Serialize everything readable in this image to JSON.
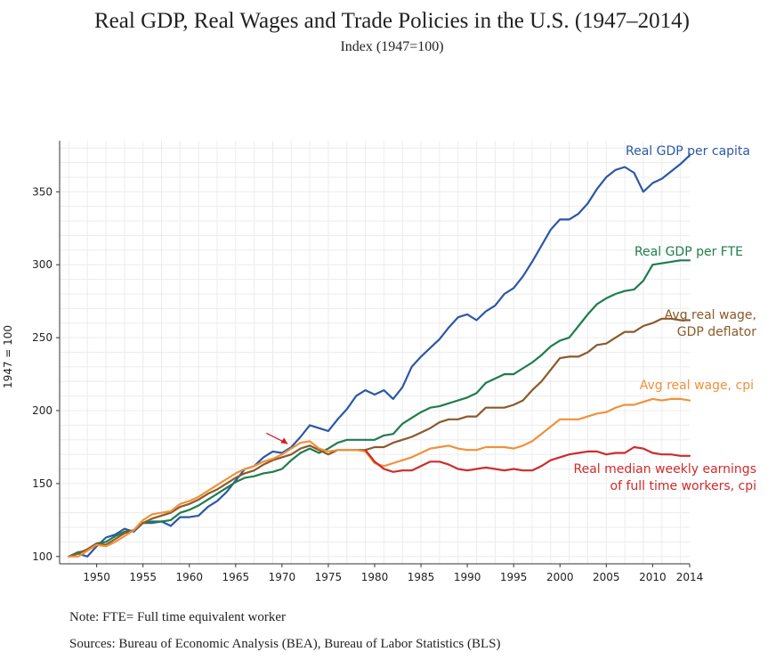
{
  "title": "Real GDP, Real Wages and Trade Policies in the U.S. (1947–2014)",
  "subtitle": "Index (1947=100)",
  "note": "Note: FTE= Full time equivalent worker",
  "sources": "Sources: Bureau of Economic Analysis (BEA), Bureau of Labor Statistics (BLS)",
  "chart_data": {
    "type": "line",
    "ylabel": "1947 = 100",
    "xlabel": "",
    "xlim": [
      1946,
      2014
    ],
    "ylim": [
      95,
      385
    ],
    "x_ticks": [
      1950,
      1955,
      1960,
      1965,
      1970,
      1975,
      1980,
      1985,
      1990,
      1995,
      2000,
      2005,
      2010,
      2014
    ],
    "y_ticks": [
      100,
      150,
      200,
      250,
      300,
      350
    ],
    "grid": true,
    "annotation": {
      "type": "arrow",
      "x": 1971,
      "y": 176
    },
    "series": [
      {
        "name": "Real GDP per capita",
        "label_lines": [
          "Real GDP per capita"
        ],
        "color": "#2b58a6",
        "x": [
          1947,
          1948,
          1949,
          1950,
          1951,
          1952,
          1953,
          1954,
          1955,
          1956,
          1957,
          1958,
          1959,
          1960,
          1961,
          1962,
          1963,
          1964,
          1965,
          1966,
          1967,
          1968,
          1969,
          1970,
          1971,
          1972,
          1973,
          1974,
          1975,
          1976,
          1977,
          1978,
          1979,
          1980,
          1981,
          1982,
          1983,
          1984,
          1985,
          1986,
          1987,
          1988,
          1989,
          1990,
          1991,
          1992,
          1993,
          1994,
          1995,
          1996,
          1997,
          1998,
          1999,
          2000,
          2001,
          2002,
          2003,
          2004,
          2005,
          2006,
          2007,
          2008,
          2009,
          2010,
          2011,
          2012,
          2013,
          2014
        ],
        "values": [
          100,
          102,
          100,
          107,
          113,
          115,
          119,
          117,
          123,
          123,
          124,
          121,
          127,
          127,
          128,
          134,
          138,
          144,
          152,
          160,
          162,
          168,
          172,
          171,
          175,
          182,
          190,
          188,
          186,
          194,
          201,
          210,
          214,
          211,
          214,
          208,
          216,
          230,
          237,
          243,
          249,
          257,
          264,
          266,
          262,
          268,
          272,
          280,
          284,
          292,
          302,
          313,
          324,
          331,
          331,
          335,
          342,
          352,
          360,
          365,
          367,
          363,
          350,
          356,
          359,
          364,
          369,
          375
        ]
      },
      {
        "name": "Real GDP per FTE",
        "label_lines": [
          "Real GDP per FTE"
        ],
        "color": "#1e7d4e",
        "x": [
          1947,
          1948,
          1949,
          1950,
          1951,
          1952,
          1953,
          1954,
          1955,
          1956,
          1957,
          1958,
          1959,
          1960,
          1961,
          1962,
          1963,
          1964,
          1965,
          1966,
          1967,
          1968,
          1969,
          1970,
          1971,
          1972,
          1973,
          1974,
          1975,
          1976,
          1977,
          1978,
          1979,
          1980,
          1981,
          1982,
          1983,
          1984,
          1985,
          1986,
          1987,
          1988,
          1989,
          1990,
          1991,
          1992,
          1993,
          1994,
          1995,
          1996,
          1997,
          1998,
          1999,
          2000,
          2001,
          2002,
          2003,
          2004,
          2005,
          2006,
          2007,
          2008,
          2009,
          2010,
          2011,
          2012,
          2013,
          2014
        ],
        "values": [
          100,
          103,
          104,
          109,
          110,
          114,
          117,
          118,
          123,
          124,
          124,
          125,
          130,
          132,
          135,
          139,
          143,
          147,
          151,
          154,
          155,
          157,
          158,
          160,
          166,
          171,
          174,
          171,
          174,
          178,
          180,
          180,
          180,
          180,
          183,
          184,
          191,
          195,
          199,
          202,
          203,
          205,
          207,
          209,
          212,
          219,
          222,
          225,
          225,
          229,
          233,
          238,
          244,
          248,
          250,
          258,
          266,
          273,
          277,
          280,
          282,
          283,
          289,
          300,
          301,
          302,
          303,
          303
        ]
      },
      {
        "name": "Avg real wage, GDP deflator",
        "label_lines": [
          "Avg real wage,",
          "GDP deflator"
        ],
        "color": "#8b5a2b",
        "x": [
          1947,
          1948,
          1949,
          1950,
          1951,
          1952,
          1953,
          1954,
          1955,
          1956,
          1957,
          1958,
          1959,
          1960,
          1961,
          1962,
          1963,
          1964,
          1965,
          1966,
          1967,
          1968,
          1969,
          1970,
          1971,
          1972,
          1973,
          1974,
          1975,
          1976,
          1977,
          1978,
          1979,
          1980,
          1981,
          1982,
          1983,
          1984,
          1985,
          1986,
          1987,
          1988,
          1989,
          1990,
          1991,
          1992,
          1993,
          1994,
          1995,
          1996,
          1997,
          1998,
          1999,
          2000,
          2001,
          2002,
          2003,
          2004,
          2005,
          2006,
          2007,
          2008,
          2009,
          2010,
          2011,
          2012,
          2013,
          2014
        ],
        "values": [
          100,
          102,
          105,
          109,
          108,
          112,
          116,
          118,
          123,
          126,
          128,
          130,
          134,
          136,
          139,
          143,
          146,
          150,
          154,
          157,
          159,
          163,
          166,
          168,
          170,
          174,
          176,
          173,
          170,
          173,
          173,
          173,
          173,
          175,
          175,
          178,
          180,
          182,
          185,
          188,
          192,
          194,
          194,
          196,
          196,
          202,
          202,
          202,
          204,
          207,
          214,
          220,
          228,
          236,
          237,
          237,
          240,
          245,
          246,
          250,
          254,
          254,
          258,
          260,
          263,
          263,
          262,
          262
        ]
      },
      {
        "name": "Avg real wage, cpi",
        "label_lines": [
          "Avg real wage, cpi"
        ],
        "color": "#f0913a",
        "x": [
          1947,
          1948,
          1949,
          1950,
          1951,
          1952,
          1953,
          1954,
          1955,
          1956,
          1957,
          1958,
          1959,
          1960,
          1961,
          1962,
          1963,
          1964,
          1965,
          1966,
          1967,
          1968,
          1969,
          1970,
          1971,
          1972,
          1973,
          1974,
          1975,
          1976,
          1977,
          1978,
          1979,
          1980,
          1981,
          1982,
          1983,
          1984,
          1985,
          1986,
          1987,
          1988,
          1989,
          1990,
          1991,
          1992,
          1993,
          1994,
          1995,
          1996,
          1997,
          1998,
          1999,
          2000,
          2001,
          2002,
          2003,
          2004,
          2005,
          2006,
          2007,
          2008,
          2009,
          2010,
          2011,
          2012,
          2013,
          2014
        ],
        "values": [
          100,
          100,
          104,
          108,
          107,
          110,
          114,
          118,
          125,
          129,
          130,
          131,
          136,
          138,
          141,
          145,
          149,
          153,
          157,
          160,
          162,
          165,
          167,
          170,
          174,
          178,
          179,
          174,
          172,
          173,
          173,
          173,
          172,
          164,
          162,
          164,
          166,
          168,
          171,
          174,
          175,
          176,
          174,
          173,
          173,
          175,
          175,
          175,
          174,
          176,
          179,
          184,
          189,
          194,
          194,
          194,
          196,
          198,
          199,
          202,
          204,
          204,
          206,
          208,
          207,
          208,
          208,
          207
        ]
      },
      {
        "name": "Real median weekly earnings of full time workers, cpi",
        "label_lines": [
          "Real median weekly earnings",
          "of full time workers, cpi"
        ],
        "color": "#cf2b2b",
        "x": [
          1979,
          1980,
          1981,
          1982,
          1983,
          1984,
          1985,
          1986,
          1987,
          1988,
          1989,
          1990,
          1991,
          1992,
          1993,
          1994,
          1995,
          1996,
          1997,
          1998,
          1999,
          2000,
          2001,
          2002,
          2003,
          2004,
          2005,
          2006,
          2007,
          2008,
          2009,
          2010,
          2011,
          2012,
          2013,
          2014
        ],
        "values": [
          173,
          165,
          160,
          158,
          159,
          159,
          162,
          165,
          165,
          163,
          160,
          159,
          160,
          161,
          160,
          159,
          160,
          159,
          159,
          162,
          166,
          168,
          170,
          171,
          172,
          172,
          170,
          171,
          171,
          175,
          174,
          171,
          170,
          170,
          169,
          169
        ]
      }
    ]
  }
}
